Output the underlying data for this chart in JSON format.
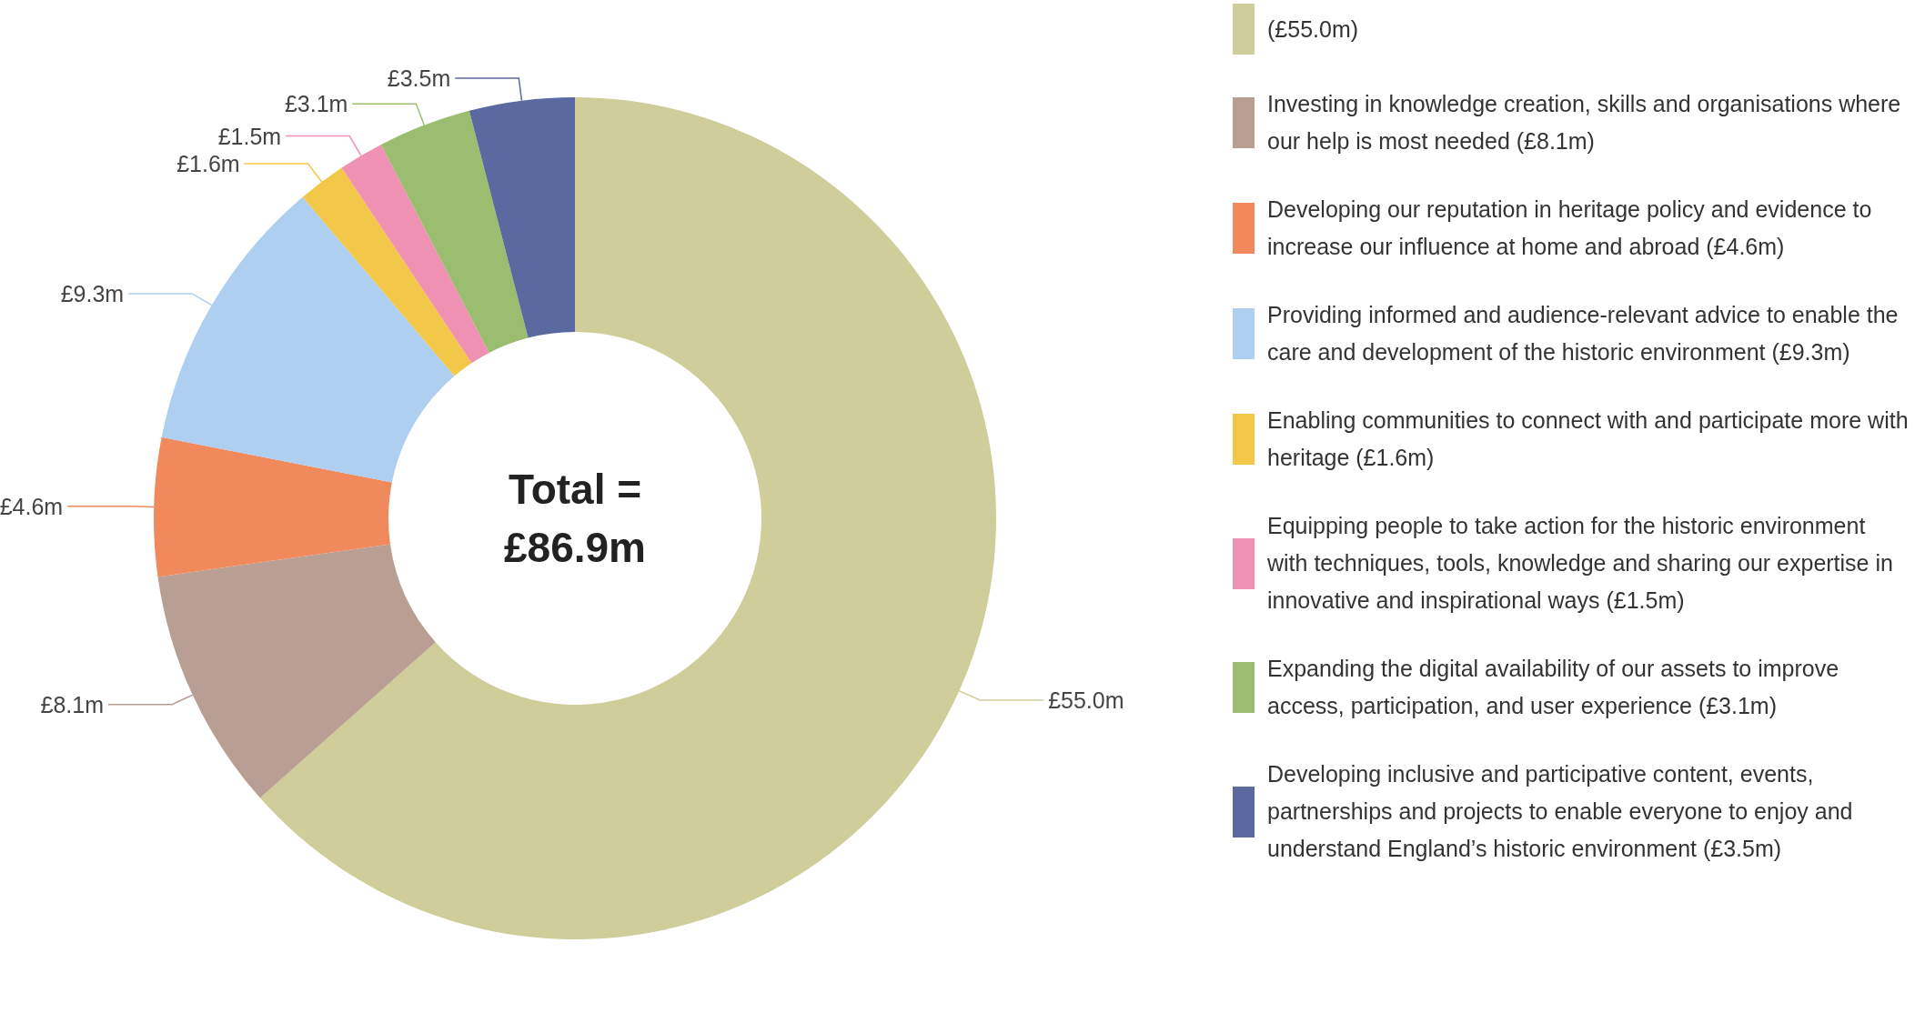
{
  "chart_data": {
    "type": "donut",
    "categories": [
      "(£55.0m)",
      "Investing in knowledge creation, skills and organisations where our help is most needed (£8.1m)",
      "Developing our reputation in heritage policy and evidence to increase our influence at home and abroad (£4.6m)",
      "Providing informed and audience-relevant advice to enable the care and development of the historic environment (£9.3m)",
      "Enabling communities to connect with and participate more with heritage (£1.6m)",
      "Equipping people to take action for the historic environment with techniques, tools, knowledge and sharing our expertise in innovative and inspirational ways (£1.5m)",
      "Expanding the digital availability of our assets to improve access, participation, and user experience (£3.1m)",
      "Developing inclusive and participative content, events, partnerships and projects to enable everyone to enjoy and understand England’s historic environment (£3.5m)"
    ],
    "values": [
      55.0,
      8.1,
      4.6,
      9.3,
      1.6,
      1.5,
      3.1,
      3.5
    ],
    "value_labels": [
      "£55.0m",
      "£8.1m",
      "£4.6m",
      "£9.3m",
      "£1.6m",
      "£1.5m",
      "£3.1m",
      "£3.5m"
    ],
    "colors": [
      "#cfcd9a",
      "#b99e94",
      "#f08a5d",
      "#aecff0",
      "#f3c747",
      "#ef91b2",
      "#9abd6f",
      "#5a69a0"
    ],
    "annotations": [
      "Total =\n£86.9m"
    ],
    "legend": "right"
  }
}
